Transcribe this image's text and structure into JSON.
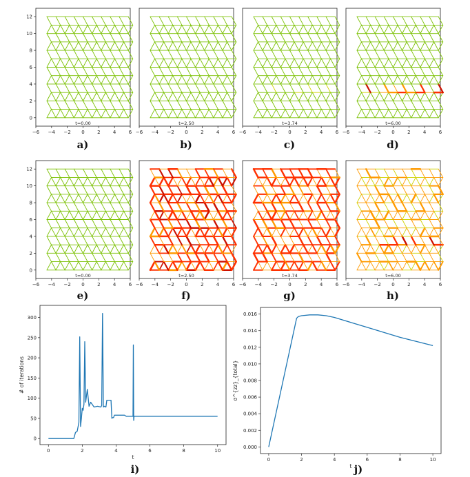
{
  "figure": {
    "panel_labels": [
      "a)",
      "b)",
      "c)",
      "d)",
      "e)",
      "f)",
      "g)",
      "h)",
      "i)",
      "j)"
    ]
  },
  "chart_data": [
    {
      "id": "a",
      "type": "lattice",
      "time_label": "t=0.00",
      "xlim": [
        -6,
        6
      ],
      "ylim": [
        -1,
        13
      ],
      "xticks": [
        -6,
        -4,
        -2,
        0,
        2,
        4,
        6
      ],
      "xtick_labels": [
        "−6",
        "−4",
        "−2",
        "0",
        "2",
        "4",
        "6"
      ],
      "yticks": [
        0,
        2,
        4,
        6,
        8,
        10,
        12
      ],
      "ytick_labels": [
        "0",
        "2",
        "4",
        "6",
        "8",
        "10",
        "12"
      ],
      "rows": 12,
      "cols": 9,
      "stress": 0.0,
      "crack_row": 3,
      "crack_intensity": 0.0,
      "colors": [
        "#7ac000",
        "#cfd200",
        "#ff9a00",
        "#ff3000",
        "#cc1000"
      ]
    },
    {
      "id": "b",
      "type": "lattice",
      "time_label": "t=2.50",
      "xlim": [
        -6,
        6
      ],
      "ylim": [
        -1,
        13
      ],
      "xticks": [
        -6,
        -4,
        -2,
        0,
        2,
        4,
        6
      ],
      "xtick_labels": [
        "−6",
        "−4",
        "−2",
        "0",
        "2",
        "4",
        "6"
      ],
      "yticks": [],
      "ytick_labels": [],
      "rows": 12,
      "cols": 9,
      "stress": 0.12,
      "crack_row": 3,
      "crack_intensity": 0.1,
      "colors": [
        "#7ac000",
        "#cfd200",
        "#ff9a00",
        "#ff3000",
        "#cc1000"
      ]
    },
    {
      "id": "c",
      "type": "lattice",
      "time_label": "t=3.74",
      "xlim": [
        -6,
        6
      ],
      "ylim": [
        -1,
        13
      ],
      "xticks": [
        -6,
        -4,
        -2,
        0,
        2,
        4,
        6
      ],
      "xtick_labels": [
        "−6",
        "−4",
        "−2",
        "0",
        "2",
        "4",
        "6"
      ],
      "yticks": [],
      "ytick_labels": [],
      "rows": 12,
      "cols": 9,
      "stress": 0.18,
      "crack_row": 3,
      "crack_intensity": 0.3,
      "colors": [
        "#7ac000",
        "#cfd200",
        "#ff9a00",
        "#ff3000",
        "#cc1000"
      ]
    },
    {
      "id": "d",
      "type": "lattice",
      "time_label": "t=6.00",
      "xlim": [
        -6,
        6
      ],
      "ylim": [
        -1,
        13
      ],
      "xticks": [
        -6,
        -4,
        -2,
        0,
        2,
        4,
        6
      ],
      "xtick_labels": [
        "−6",
        "−4",
        "−2",
        "0",
        "2",
        "4",
        "6"
      ],
      "yticks": [],
      "ytick_labels": [],
      "rows": 12,
      "cols": 9,
      "stress": 0.08,
      "crack_row": 3,
      "crack_intensity": 0.9,
      "colors": [
        "#7ac000",
        "#cfd200",
        "#ff9a00",
        "#ff3000",
        "#cc1000"
      ]
    },
    {
      "id": "e",
      "type": "lattice",
      "time_label": "t=0.00",
      "xlim": [
        -6,
        6
      ],
      "ylim": [
        -1,
        13
      ],
      "xticks": [
        -6,
        -4,
        -2,
        0,
        2,
        4,
        6
      ],
      "xtick_labels": [
        "−6",
        "−4",
        "−2",
        "0",
        "2",
        "4",
        "6"
      ],
      "yticks": [
        0,
        2,
        4,
        6,
        8,
        10,
        12
      ],
      "ytick_labels": [
        "0",
        "2",
        "4",
        "6",
        "8",
        "10",
        "12"
      ],
      "rows": 12,
      "cols": 9,
      "stress": 0.0,
      "crack_row": 3,
      "crack_intensity": 0.0,
      "colors": [
        "#7ac000",
        "#cfd200",
        "#ff9a00",
        "#ff3000",
        "#cc1000"
      ]
    },
    {
      "id": "f",
      "type": "lattice",
      "time_label": "t=2.50",
      "xlim": [
        -6,
        6
      ],
      "ylim": [
        -1,
        13
      ],
      "xticks": [
        -6,
        -4,
        -2,
        0,
        2,
        4,
        6
      ],
      "xtick_labels": [
        "−6",
        "−4",
        "−2",
        "0",
        "2",
        "4",
        "6"
      ],
      "yticks": [],
      "ytick_labels": [],
      "rows": 12,
      "cols": 9,
      "stress": 0.85,
      "crack_row": 3,
      "crack_intensity": 0.2,
      "colors": [
        "#7ac000",
        "#cfd200",
        "#ff9a00",
        "#ff3000",
        "#cc1000"
      ]
    },
    {
      "id": "g",
      "type": "lattice",
      "time_label": "t=3.74",
      "xlim": [
        -6,
        6
      ],
      "ylim": [
        -1,
        13
      ],
      "xticks": [
        -6,
        -4,
        -2,
        0,
        2,
        4,
        6
      ],
      "xtick_labels": [
        "−6",
        "−4",
        "−2",
        "0",
        "2",
        "4",
        "6"
      ],
      "yticks": [],
      "ytick_labels": [],
      "rows": 12,
      "cols": 9,
      "stress": 0.8,
      "crack_row": 3,
      "crack_intensity": 0.4,
      "colors": [
        "#7ac000",
        "#cfd200",
        "#ff9a00",
        "#ff3000",
        "#cc1000"
      ]
    },
    {
      "id": "h",
      "type": "lattice",
      "time_label": "t=6.00",
      "xlim": [
        -6,
        6
      ],
      "ylim": [
        -1,
        13
      ],
      "xticks": [
        -6,
        -4,
        -2,
        0,
        2,
        4,
        6
      ],
      "xtick_labels": [
        "−6",
        "−4",
        "−2",
        "0",
        "2",
        "4",
        "6"
      ],
      "yticks": [],
      "ytick_labels": [],
      "rows": 12,
      "cols": 9,
      "stress": 0.6,
      "crack_row": 3,
      "crack_intensity": 0.9,
      "colors": [
        "#7ac000",
        "#cfd200",
        "#ff9a00",
        "#ff3000",
        "#cc1000"
      ]
    },
    {
      "id": "i",
      "type": "line",
      "xlabel": "t",
      "ylabel": "# of iterations",
      "xlim": [
        -0.5,
        10.5
      ],
      "ylim": [
        -15,
        330
      ],
      "xticks": [
        0,
        2,
        4,
        6,
        8,
        10
      ],
      "xtick_labels": [
        "0",
        "2",
        "4",
        "6",
        "8",
        "10"
      ],
      "yticks": [
        0,
        50,
        100,
        150,
        200,
        250,
        300
      ],
      "ytick_labels": [
        "0",
        "50",
        "100",
        "150",
        "200",
        "250",
        "300"
      ],
      "color": "#1f77b4",
      "x": [
        0,
        1.5,
        1.6,
        1.7,
        1.8,
        1.85,
        1.9,
        1.95,
        2.0,
        2.05,
        2.1,
        2.15,
        2.2,
        2.3,
        2.4,
        2.5,
        2.7,
        2.9,
        3.1,
        3.15,
        3.2,
        3.25,
        3.3,
        3.4,
        3.45,
        3.5,
        3.7,
        3.75,
        3.8,
        3.85,
        3.9,
        4.0,
        4.5,
        4.6,
        4.7,
        5.0,
        5.02,
        5.04,
        5.06,
        5.1,
        6,
        8,
        10
      ],
      "y": [
        0,
        0,
        15,
        18,
        40,
        252,
        30,
        50,
        75,
        70,
        85,
        240,
        90,
        122,
        80,
        90,
        78,
        80,
        78,
        82,
        310,
        78,
        80,
        78,
        95,
        95,
        95,
        50,
        52,
        52,
        58,
        58,
        58,
        55,
        55,
        55,
        232,
        45,
        55,
        55,
        55,
        55,
        55
      ]
    },
    {
      "id": "j",
      "type": "line",
      "xlabel": "t",
      "ylabel": "σ^{zz}_{total}",
      "xlim": [
        -0.5,
        10.5
      ],
      "ylim": [
        -0.0008,
        0.0168
      ],
      "xticks": [
        0,
        2,
        4,
        6,
        8,
        10
      ],
      "xtick_labels": [
        "0",
        "2",
        "4",
        "6",
        "8",
        "10"
      ],
      "yticks": [
        0,
        0.002,
        0.004,
        0.006,
        0.008,
        0.01,
        0.012,
        0.014,
        0.016
      ],
      "ytick_labels": [
        "0.000",
        "0.002",
        "0.004",
        "0.006",
        "0.008",
        "0.010",
        "0.012",
        "0.014",
        "0.016"
      ],
      "color": "#1f77b4",
      "x": [
        0,
        1.7,
        1.8,
        2.0,
        2.5,
        3.0,
        3.5,
        4.0,
        5.0,
        6.0,
        7.0,
        8.0,
        9.0,
        10.0
      ],
      "y": [
        0,
        0.0155,
        0.0157,
        0.0158,
        0.0159,
        0.0159,
        0.0158,
        0.0156,
        0.015,
        0.0144,
        0.0138,
        0.0132,
        0.0127,
        0.0122
      ]
    }
  ]
}
